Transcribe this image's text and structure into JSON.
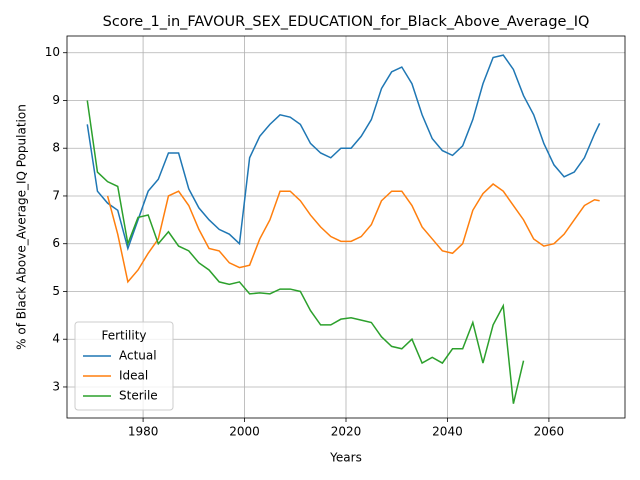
{
  "chart_data": {
    "type": "line",
    "title": "Score_1_in_FAVOUR_SEX_EDUCATION_for_Black_Above_Average_IQ",
    "xlabel": "Years",
    "ylabel": "% of Black Above_Average_IQ Population",
    "x": [
      1969,
      1971,
      1973,
      1975,
      1977,
      1979,
      1981,
      1983,
      1985,
      1987,
      1989,
      1991,
      1993,
      1995,
      1997,
      1999,
      2001,
      2003,
      2005,
      2007,
      2009,
      2011,
      2013,
      2015,
      2017,
      2019,
      2021,
      2023,
      2025,
      2027,
      2029,
      2031,
      2033,
      2035,
      2037,
      2039,
      2041,
      2043,
      2045,
      2047,
      2049,
      2051,
      2053,
      2055,
      2057,
      2059,
      2061,
      2063,
      2065,
      2067,
      2069,
      2070
    ],
    "series": [
      {
        "name": "Actual",
        "color": "#1f77b4",
        "values": [
          8.5,
          7.1,
          6.85,
          6.7,
          5.9,
          6.5,
          7.1,
          7.35,
          7.9,
          7.9,
          7.15,
          6.75,
          6.5,
          6.3,
          6.2,
          6.0,
          7.8,
          8.25,
          8.5,
          8.7,
          8.65,
          8.5,
          8.1,
          7.9,
          7.8,
          8.0,
          8.0,
          8.25,
          8.6,
          9.25,
          9.6,
          9.7,
          9.35,
          8.7,
          8.2,
          7.95,
          7.85,
          8.05,
          8.6,
          9.35,
          9.9,
          9.95,
          9.65,
          9.1,
          8.7,
          8.1,
          7.65,
          7.4,
          7.5,
          7.8,
          8.3,
          8.52
        ]
      },
      {
        "name": "Ideal",
        "color": "#ff7f0e",
        "values": [
          null,
          null,
          7.0,
          6.2,
          5.2,
          5.45,
          5.8,
          6.1,
          7.0,
          7.1,
          6.8,
          6.3,
          5.9,
          5.85,
          5.6,
          5.5,
          5.55,
          6.1,
          6.5,
          7.1,
          7.1,
          6.9,
          6.6,
          6.35,
          6.15,
          6.05,
          6.05,
          6.15,
          6.4,
          6.9,
          7.1,
          7.1,
          6.8,
          6.35,
          6.1,
          5.85,
          5.8,
          6.0,
          6.7,
          7.05,
          7.25,
          7.1,
          6.8,
          6.5,
          6.1,
          5.95,
          6.0,
          6.2,
          6.5,
          6.8,
          6.92,
          6.9
        ]
      },
      {
        "name": "Sterile",
        "color": "#2ca02c",
        "values": [
          9.0,
          7.5,
          7.3,
          7.2,
          6.0,
          6.55,
          6.6,
          6.0,
          6.25,
          5.95,
          5.85,
          5.6,
          5.45,
          5.2,
          5.15,
          5.2,
          4.95,
          4.97,
          4.95,
          5.05,
          5.05,
          5.0,
          4.6,
          4.3,
          4.3,
          4.42,
          4.45,
          4.4,
          4.35,
          4.05,
          3.85,
          3.8,
          4.0,
          3.5,
          3.62,
          3.5,
          3.8,
          3.8,
          4.35,
          3.5,
          4.3,
          4.7,
          2.65,
          3.55,
          null,
          null,
          null,
          null,
          null,
          null,
          null,
          null
        ]
      }
    ],
    "xlim": [
      1965,
      2075
    ],
    "xticks": [
      1980,
      2000,
      2020,
      2040,
      2060
    ],
    "ylim": [
      2.35,
      10.35
    ],
    "yticks": [
      3,
      4,
      5,
      6,
      7,
      8,
      9,
      10
    ],
    "grid": true,
    "legend_title": "Fertility",
    "legend_loc": "lower left"
  }
}
